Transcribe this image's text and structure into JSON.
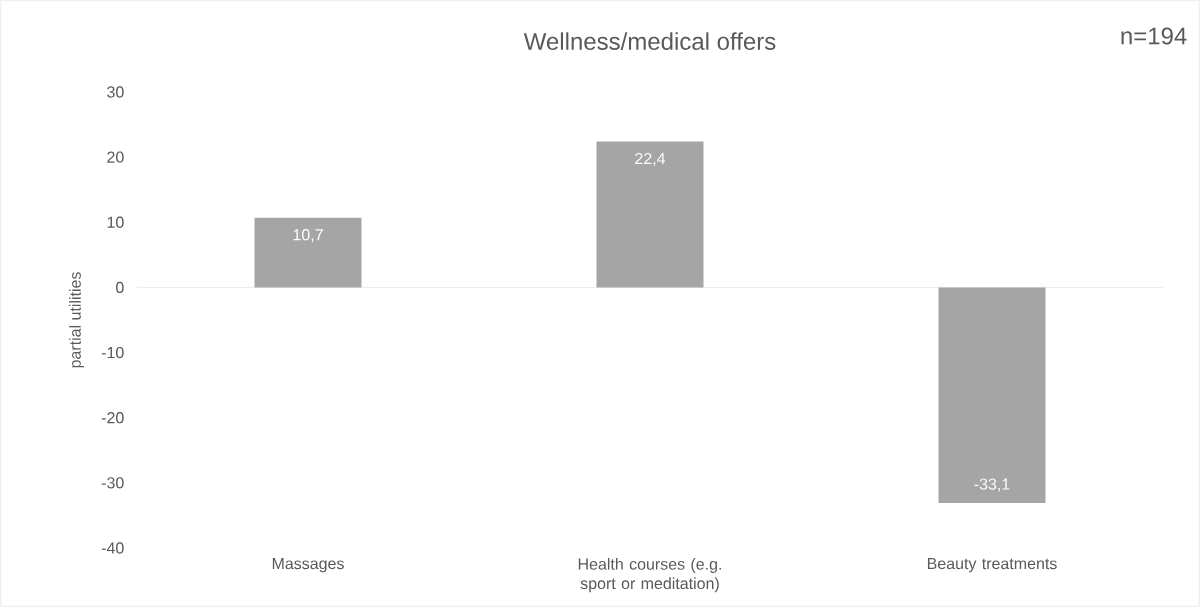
{
  "chart_data": {
    "type": "bar",
    "title": "Wellness/medical offers",
    "ylabel": "partial utilities",
    "annotations": [
      "n=194"
    ],
    "categories": [
      "Massages",
      "Health courses (e.g. sport or meditation)",
      "Beauty treatments"
    ],
    "values": [
      10.7,
      22.4,
      -33.1
    ],
    "value_labels": [
      "10,7",
      "22,4",
      "-33,1"
    ],
    "color": "#a5a5a5",
    "ylim": [
      -40,
      30
    ],
    "yticks": [
      -40,
      -30,
      -20,
      -10,
      0,
      10,
      20,
      30
    ]
  }
}
